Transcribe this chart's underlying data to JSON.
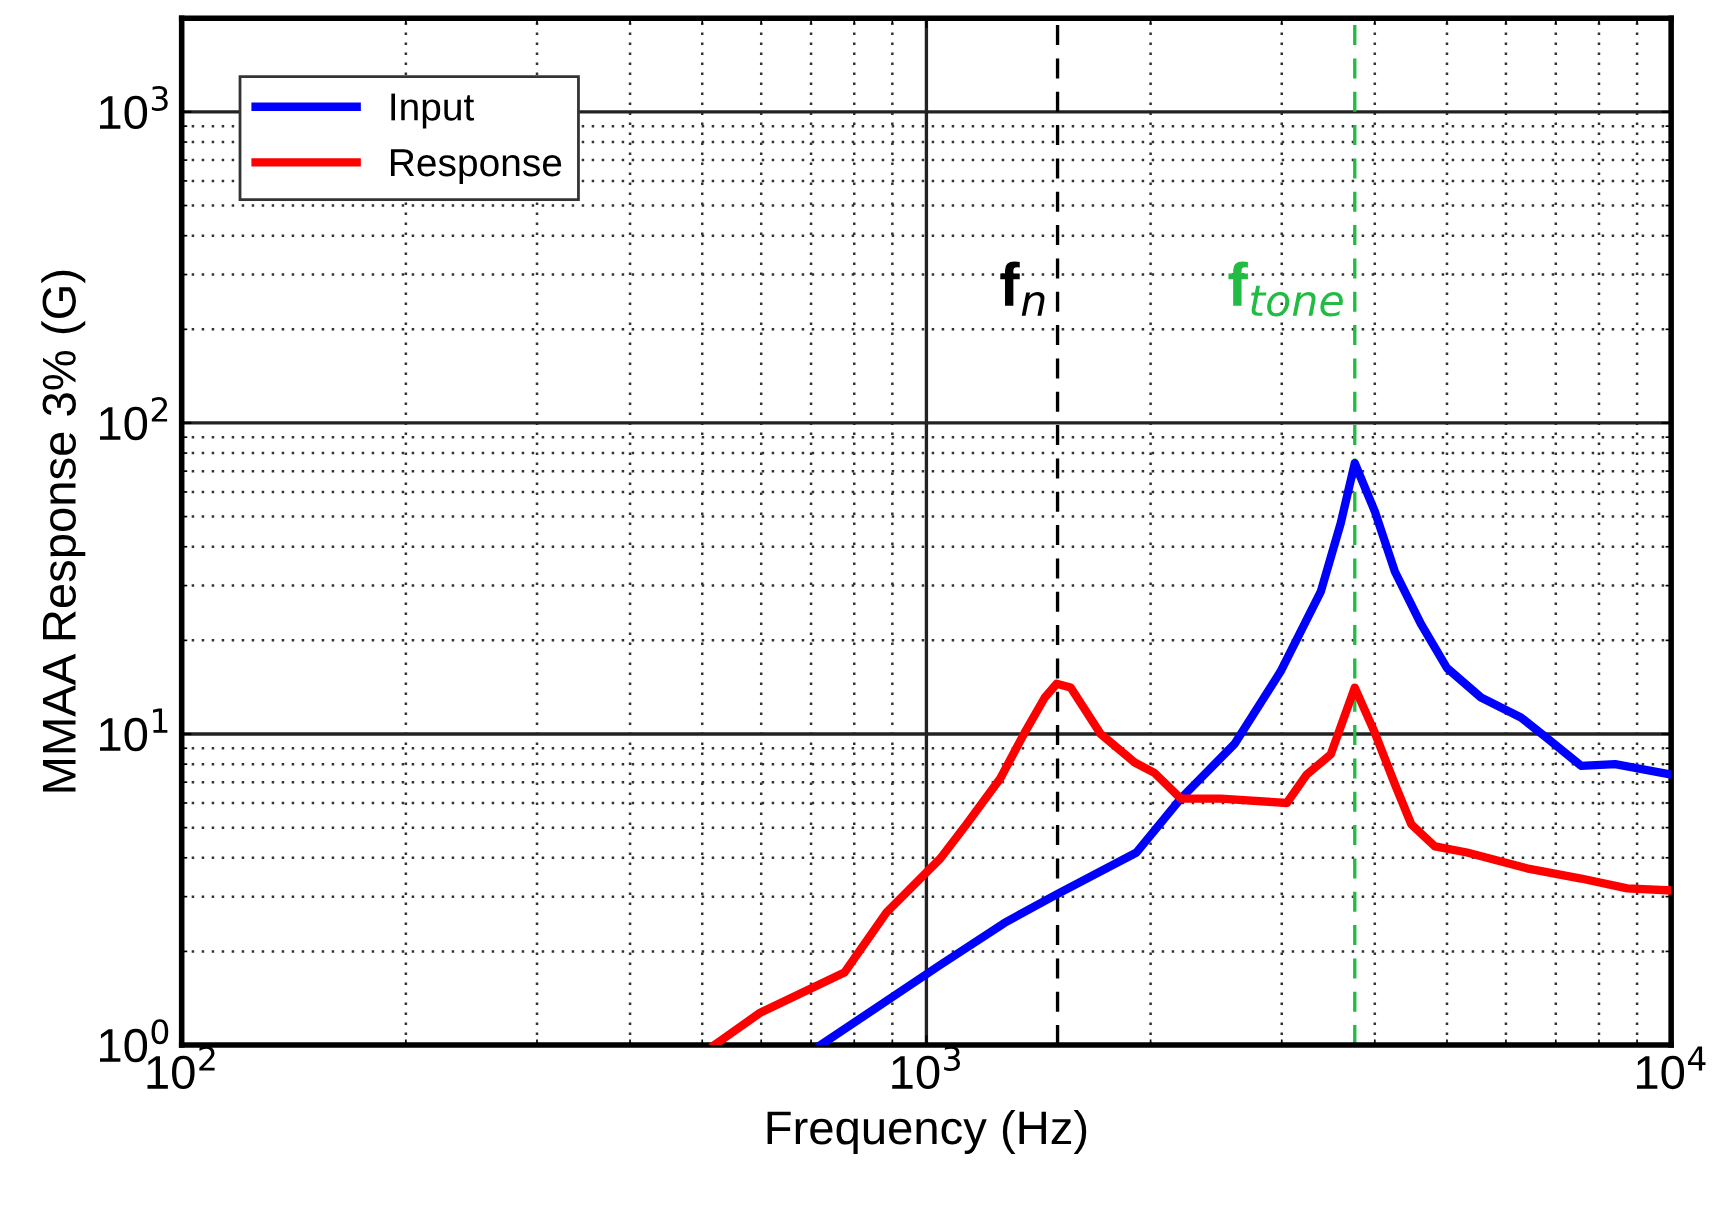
{
  "chart_data": {
    "type": "line",
    "xlabel": "Frequency (Hz)",
    "ylabel": "MMAA Response 3% (G)",
    "log": "xy",
    "grid": true,
    "legend": "top left",
    "line_style": "solid",
    "xlim": [
      100,
      10000
    ],
    "ylim": [
      1,
      2000
    ],
    "xticks": [
      {
        "value": 100,
        "label": "10$^{2}$"
      },
      {
        "value": 1000,
        "label": "10$^{3}$"
      },
      {
        "value": 10000,
        "label": "10$^{4}$"
      }
    ],
    "yticks": [
      {
        "value": 1,
        "label": "10$^{0}$"
      },
      {
        "value": 10,
        "label": "10$^{1}$"
      },
      {
        "value": 100,
        "label": "10$^{2}$"
      },
      {
        "value": 1000,
        "label": "10$^{3}$"
      }
    ],
    "series": [
      {
        "name": "Input",
        "color": "#0000ff",
        "x": [
          721,
          1044,
          1273,
          1496,
          1915,
          2195,
          2594,
          2990,
          3385,
          3600,
          3760,
          4000,
          4256,
          4613,
          5000,
          5555,
          6285,
          6810,
          7570,
          8410,
          10000
        ],
        "values": [
          1.0,
          1.81,
          2.47,
          3.05,
          4.16,
          6.2,
          9.3,
          15.9,
          28.7,
          47.6,
          74.3,
          52,
          33.3,
          22.6,
          16.3,
          13.1,
          11.3,
          9.7,
          7.9,
          8.0,
          7.4
        ]
      },
      {
        "name": "Response",
        "color": "#ff0000",
        "x": [
          519,
          598,
          776,
          884,
          1044,
          1132,
          1257,
          1355,
          1442,
          1496,
          1562,
          1714,
          1904,
          2024,
          2195,
          2484,
          3047,
          3240,
          3491,
          3760,
          4000,
          4256,
          4477,
          4818,
          5320,
          6400,
          7570,
          8730,
          10000
        ],
        "values": [
          1.0,
          1.27,
          1.71,
          2.67,
          3.98,
          5.13,
          7.21,
          10.1,
          13.1,
          14.5,
          14.1,
          10.0,
          8.1,
          7.5,
          6.2,
          6.2,
          6.0,
          7.4,
          8.6,
          14.1,
          10.1,
          6.9,
          5.13,
          4.35,
          4.16,
          3.7,
          3.43,
          3.19,
          3.14
        ]
      }
    ],
    "ref_lines": [
      {
        "axis": "x",
        "value": 1500,
        "label": "f$_{n}$",
        "color": "#000000",
        "line_style": "dashed"
      },
      {
        "axis": "x",
        "value": 3760,
        "label": "f$_{tone}$",
        "color": "#22bb44",
        "line_style": "dashed"
      }
    ]
  }
}
